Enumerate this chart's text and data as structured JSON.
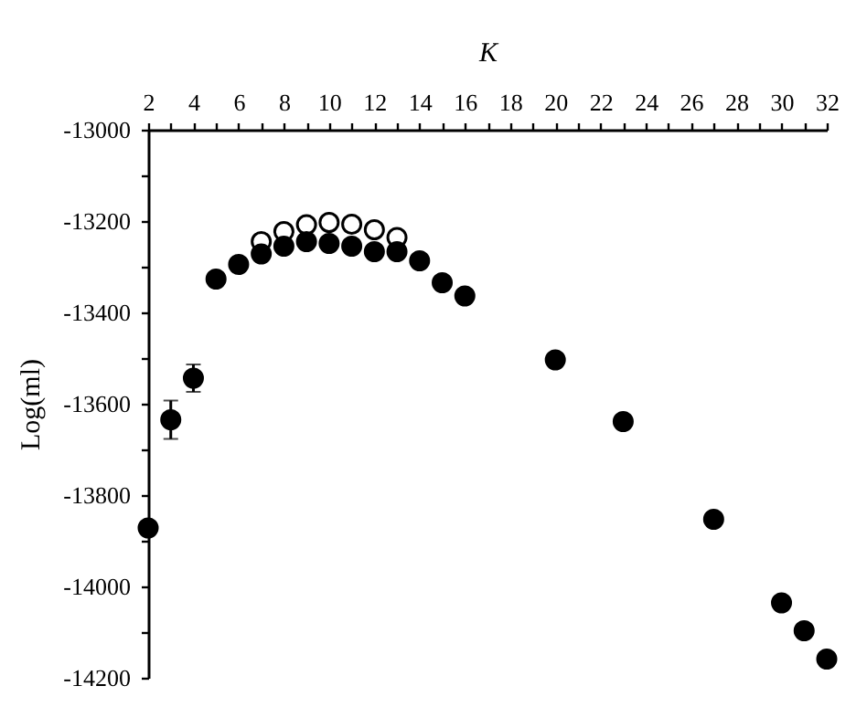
{
  "chart_data": {
    "type": "scatter",
    "xlabel": "K",
    "ylabel": "Log(ml)",
    "x": [
      2,
      3,
      4,
      5,
      6,
      7,
      8,
      9,
      10,
      11,
      12,
      13,
      14,
      15,
      16,
      20,
      23,
      27,
      30,
      31,
      32
    ],
    "series": [
      {
        "color": "#ffffff",
        "x": [
          7,
          8,
          9,
          10,
          11,
          12,
          13
        ],
        "values": [
          -13245,
          -13223,
          -13208,
          -13203,
          -13207,
          -13219,
          -13236
        ]
      },
      {
        "color": "#000000",
        "values": [
          -13872,
          -13635,
          -13544,
          -13327,
          -13295,
          -13272,
          -13255,
          -13245,
          -13249,
          -13255,
          -13267,
          -13267,
          -13287,
          -13335,
          -13364,
          -13504,
          -13639,
          -13853,
          -14036,
          -14097,
          -14159
        ],
        "errors": [
          null,
          42,
          30,
          null,
          null,
          null,
          null,
          null,
          null,
          null,
          null,
          null,
          null,
          null,
          null,
          null,
          null,
          null,
          null,
          null,
          null
        ]
      }
    ],
    "xlim": [
      2,
      32
    ],
    "xticks": [
      2,
      {
        "value": 3,
        "label": null
      },
      4,
      {
        "value": 5,
        "label": null
      },
      6,
      {
        "value": 7,
        "label": null
      },
      8,
      {
        "value": 9,
        "label": null
      },
      10,
      {
        "value": 11,
        "label": null
      },
      12,
      {
        "value": 13,
        "label": null
      },
      14,
      {
        "value": 15,
        "label": null
      },
      16,
      {
        "value": 17,
        "label": null
      },
      18,
      {
        "value": 19,
        "label": null
      },
      20,
      {
        "value": 21,
        "label": null
      },
      22,
      {
        "value": 23,
        "label": null
      },
      24,
      {
        "value": 25,
        "label": null
      },
      26,
      {
        "value": 27,
        "label": null
      },
      28,
      {
        "value": 29,
        "label": null
      },
      30,
      {
        "value": 31,
        "label": null
      },
      32
    ],
    "ylim": [
      -14200,
      -13000
    ],
    "yticks": [
      -14200,
      {
        "value": -14100,
        "label": null
      },
      -14000,
      {
        "value": -13900,
        "label": null
      },
      -13800,
      {
        "value": -13700,
        "label": null
      },
      -13600,
      {
        "value": -13500,
        "label": null
      },
      -13400,
      {
        "value": -13300,
        "label": null
      },
      -13200,
      {
        "value": -13100,
        "label": null
      },
      -13000
    ],
    "marker": "circle"
  }
}
